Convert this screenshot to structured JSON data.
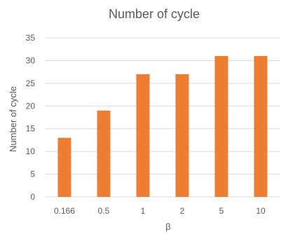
{
  "chart_data": {
    "type": "bar",
    "title": "Number of cycle",
    "xlabel": "β",
    "ylabel": "Number of cycle",
    "categories": [
      "0.166",
      "0.5",
      "1",
      "2",
      "5",
      "10"
    ],
    "values": [
      13,
      19,
      27,
      27,
      31,
      31
    ],
    "ylim": [
      0,
      35
    ],
    "yticks": [
      0,
      5,
      10,
      15,
      20,
      25,
      30,
      35
    ],
    "grid": true,
    "legend": "none",
    "bar_color": "#ED7D31",
    "grid_color": "#D9D9D9",
    "text_color": "#595959"
  }
}
